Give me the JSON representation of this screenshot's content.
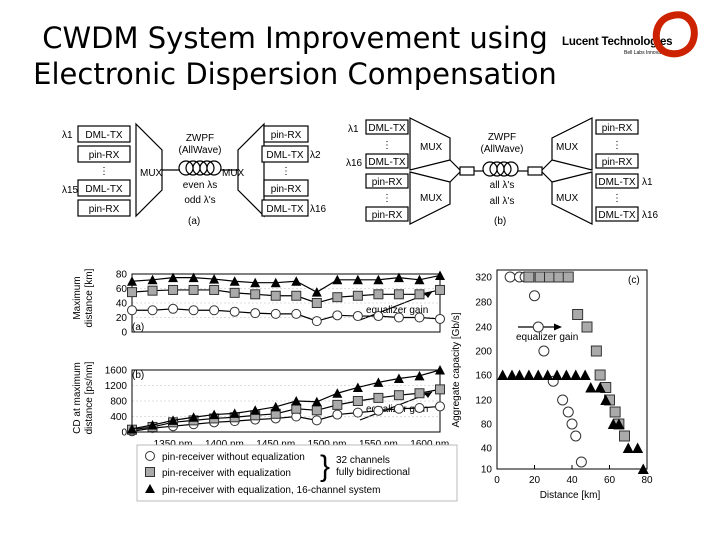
{
  "slide": {
    "title_line1": "CWDM System Improvement using",
    "title_line2": "Electronic Dispersion Compensation",
    "logo_name": "Lucent Technologies",
    "logo_tagline": "Bell Labs Innovations",
    "logo_color": "#cc2200"
  },
  "diagram_a": {
    "label": "(a)",
    "zwpf": "ZWPF",
    "allwave": "(AllWave)",
    "mux": "MUX",
    "left_top_lambda": "λ1",
    "left_bottom_lambda": "λ15",
    "right_top_lambda": "λ2",
    "right_bottom_lambda": "λ16",
    "even": "even λs",
    "odd": "odd λ's",
    "left_boxes": [
      "DML-TX",
      "pin-RX",
      "DML-TX",
      "pin-RX"
    ],
    "right_boxes": [
      "pin-RX",
      "DML-TX",
      "pin-RX",
      "DML-TX"
    ]
  },
  "diagram_b": {
    "label": "(b)",
    "zwpf": "ZWPF",
    "allwave": "(AllWave)",
    "mux": "MUX",
    "left_top_lambda": "λ1",
    "left_bottom_lambda": "λ16",
    "right_top_lambda": "λ1",
    "right_bottom_lambda": "λ16",
    "all_top": "all λ's",
    "all_bottom": "all λ's",
    "left_boxes": [
      "DML-TX",
      "DML-TX",
      "pin-RX",
      "pin-RX"
    ],
    "right_boxes": [
      "pin-RX",
      "pin-RX",
      "DML-TX",
      "DML-TX"
    ]
  },
  "legend": {
    "items": [
      "pin-receiver without equalization",
      "pin-receiver with equalization",
      "pin-receiver with equalization, 16-channel system"
    ],
    "brace_note_1": "32 channels",
    "brace_note_2": "fully bidirectional"
  },
  "chart_data": [
    {
      "type": "line",
      "panel": "(a)",
      "ylabel_1": "Maximum",
      "ylabel_2": "distance [km]",
      "ylim": [
        0,
        80
      ],
      "yticks": [
        "0",
        "20",
        "40",
        "60",
        "80"
      ],
      "annotation": "equalizer gain",
      "x": [
        1310,
        1330,
        1350,
        1370,
        1390,
        1410,
        1430,
        1450,
        1470,
        1490,
        1510,
        1530,
        1550,
        1570,
        1590,
        1610
      ],
      "series": [
        {
          "marker": "circle",
          "values": [
            30,
            30,
            32,
            30,
            30,
            28,
            26,
            25,
            25,
            15,
            23,
            22,
            22,
            20,
            20,
            18
          ]
        },
        {
          "marker": "square",
          "values": [
            55,
            57,
            58,
            58,
            58,
            54,
            52,
            50,
            50,
            40,
            48,
            50,
            52,
            52,
            52,
            58
          ]
        },
        {
          "marker": "triangle",
          "values": [
            70,
            72,
            75,
            75,
            73,
            70,
            68,
            68,
            70,
            55,
            72,
            72,
            72,
            75,
            72,
            78
          ]
        }
      ]
    },
    {
      "type": "line",
      "panel": "(b)",
      "ylabel_1": "CD at maximum",
      "ylabel_2": "distance [ps/nm]",
      "ylim": [
        0,
        1600
      ],
      "yticks": [
        "0",
        "400",
        "800",
        "1200",
        "1600"
      ],
      "xticks": [
        "1350 nm",
        "1400 nm",
        "1450 nm",
        "1500 nm",
        "1550 nm",
        "1600 nm"
      ],
      "annotation": "equalizer gain",
      "x": [
        1310,
        1330,
        1350,
        1370,
        1390,
        1410,
        1430,
        1450,
        1470,
        1490,
        1510,
        1530,
        1550,
        1570,
        1590,
        1610
      ],
      "series": [
        {
          "marker": "circle",
          "values": [
            20,
            100,
            150,
            200,
            250,
            280,
            320,
            350,
            400,
            300,
            450,
            500,
            550,
            600,
            620,
            660
          ]
        },
        {
          "marker": "square",
          "values": [
            60,
            130,
            250,
            300,
            350,
            380,
            430,
            470,
            600,
            560,
            700,
            800,
            880,
            950,
            1000,
            1100
          ]
        },
        {
          "marker": "triangle",
          "values": [
            80,
            180,
            300,
            380,
            450,
            480,
            560,
            650,
            800,
            780,
            1000,
            1150,
            1280,
            1380,
            1450,
            1600
          ]
        }
      ]
    },
    {
      "type": "scatter",
      "panel": "(c)",
      "ylabel": "Aggregate capacity [Gb/s]",
      "xlabel": "Distance [km]",
      "xlim": [
        0,
        80
      ],
      "xticks": [
        "0",
        "20",
        "40",
        "60",
        "80"
      ],
      "yticks": [
        "10",
        "40",
        "80",
        "120",
        "160",
        "200",
        "240",
        "280",
        "320"
      ],
      "annotation": "equalizer gain",
      "series": [
        {
          "marker": "circle",
          "points": [
            [
              7,
              320
            ],
            [
              12,
              320
            ],
            [
              15,
              320
            ],
            [
              20,
              290
            ],
            [
              22,
              240
            ],
            [
              25,
              200
            ],
            [
              30,
              150
            ],
            [
              35,
              120
            ],
            [
              38,
              100
            ],
            [
              40,
              80
            ],
            [
              42,
              60
            ],
            [
              45,
              20
            ]
          ]
        },
        {
          "marker": "square",
          "points": [
            [
              17,
              320
            ],
            [
              23,
              320
            ],
            [
              28,
              320
            ],
            [
              33,
              320
            ],
            [
              38,
              320
            ],
            [
              43,
              260
            ],
            [
              48,
              240
            ],
            [
              53,
              200
            ],
            [
              55,
              160
            ],
            [
              58,
              140
            ],
            [
              60,
              120
            ],
            [
              63,
              100
            ],
            [
              65,
              80
            ],
            [
              68,
              60
            ]
          ]
        },
        {
          "marker": "triangle",
          "points": [
            [
              3,
              160
            ],
            [
              8,
              160
            ],
            [
              12,
              160
            ],
            [
              17,
              160
            ],
            [
              22,
              160
            ],
            [
              27,
              160
            ],
            [
              32,
              160
            ],
            [
              37,
              160
            ],
            [
              42,
              160
            ],
            [
              47,
              160
            ],
            [
              50,
              140
            ],
            [
              55,
              140
            ],
            [
              58,
              120
            ],
            [
              62,
              80
            ],
            [
              65,
              80
            ],
            [
              70,
              40
            ],
            [
              75,
              40
            ],
            [
              78,
              10
            ]
          ]
        }
      ]
    }
  ]
}
